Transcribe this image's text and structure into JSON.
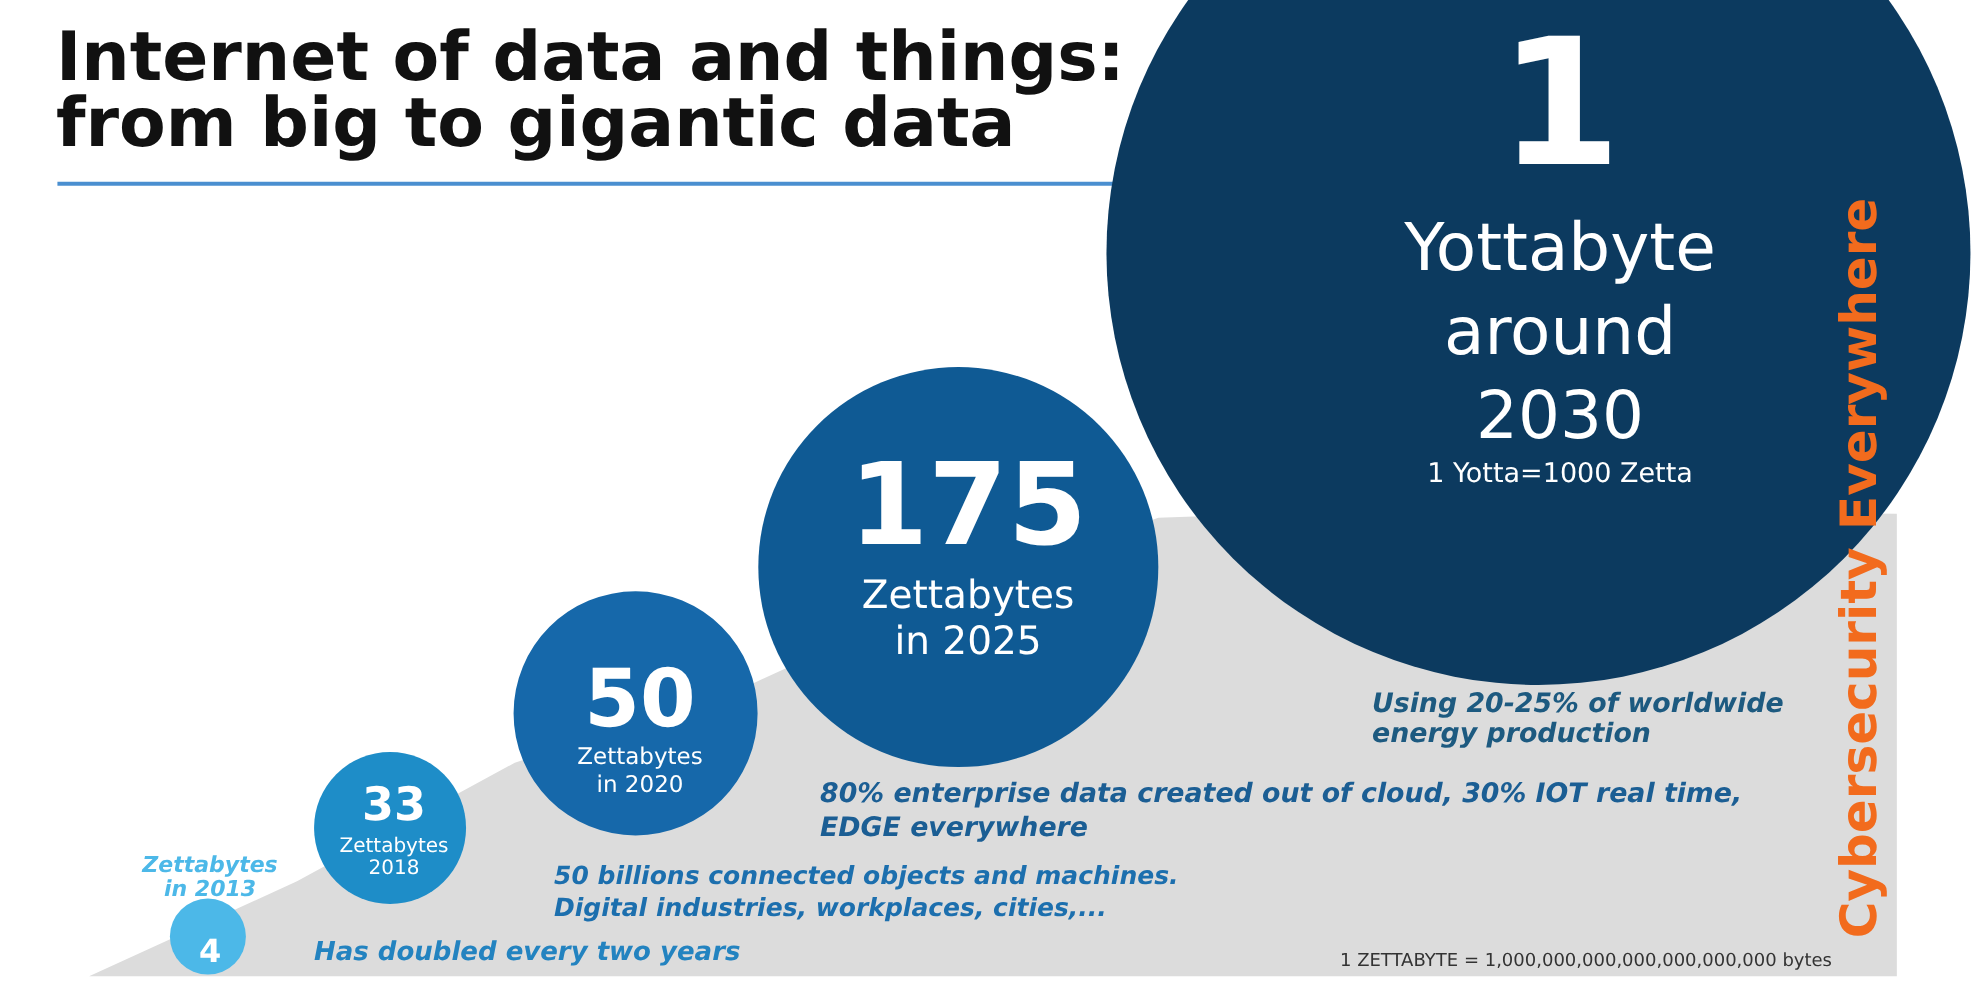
{
  "chart_data": {
    "type": "other",
    "title": "Internet of data and things:\nfrom big to gigantic data",
    "categories": [
      "Zettabytes\nin 2013",
      "Zettabytes\n2018",
      "Zettabytes\nin 2020",
      "Zettabytes\nin 2025",
      "Yottabyte\naround\n2030"
    ],
    "values": [
      4,
      33,
      50,
      175,
      1
    ],
    "colors": [
      "#4cb8e8",
      "#1e8dc8",
      "#1668aa",
      "#0f5a94",
      "#0c3a5f"
    ],
    "data_labels": true,
    "annotations": [
      "1 Yotta=1000 Zetta",
      "Has doubled every two years",
      "50 billions connected objects and machines.\nDigital industries, workplaces, cities,...",
      "80% enterprise data created out of cloud, 30% IOT real time,\nEDGE everywhere",
      "Using 20-25% of worldwide\nenergy production",
      "1 ZETTABYTE = 1,000,000,000,000,000,000,000 bytes",
      "Cybersecurity Everywhere"
    ]
  }
}
